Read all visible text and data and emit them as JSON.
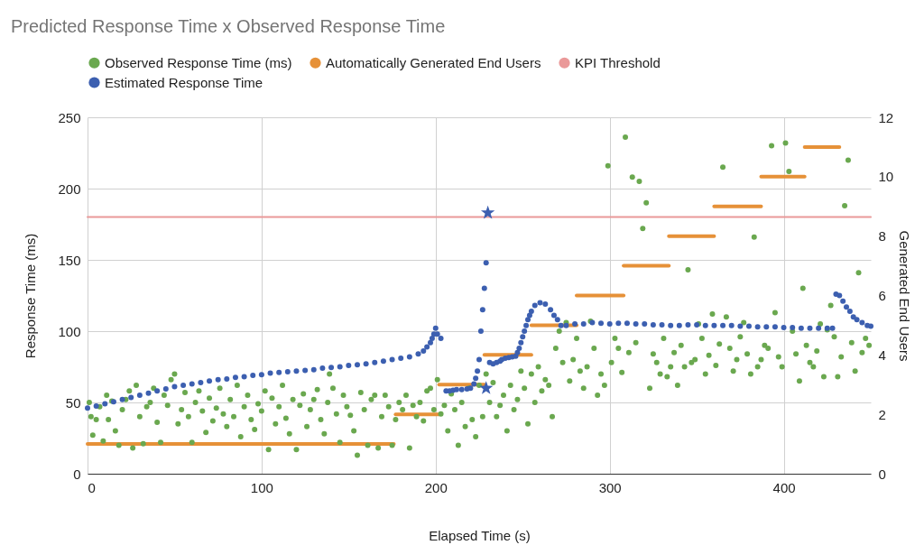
{
  "chart_data": {
    "type": "scatter",
    "title": "Predicted Response Time x Observed Response Time",
    "xlabel": "Elapsed Time (s)",
    "ylabel": "Response Time (ms)",
    "y2label": "Generated End Users",
    "xlim": [
      0,
      450
    ],
    "xticks": [
      0,
      100,
      200,
      300,
      400
    ],
    "ylim": [
      0,
      250
    ],
    "yticks": [
      0,
      50,
      100,
      150,
      200,
      250
    ],
    "y2lim": [
      0,
      12
    ],
    "y2ticks": [
      0,
      2,
      4,
      6,
      8,
      10,
      12
    ],
    "grid": true,
    "legend": "top",
    "series": [
      {
        "name": "Observed Response Time (ms)",
        "marker": "circle",
        "color": "#6aa84f",
        "x": [
          1,
          2,
          3,
          5,
          7,
          9,
          11,
          12,
          14,
          16,
          18,
          20,
          22,
          24,
          26,
          28,
          30,
          32,
          34,
          36,
          38,
          40,
          42,
          44,
          46,
          48,
          50,
          52,
          54,
          56,
          58,
          60,
          62,
          64,
          66,
          68,
          70,
          72,
          74,
          76,
          78,
          80,
          82,
          84,
          86,
          88,
          90,
          92,
          94,
          96,
          98,
          100,
          102,
          104,
          106,
          108,
          110,
          112,
          114,
          116,
          118,
          120,
          122,
          124,
          126,
          128,
          130,
          132,
          134,
          136,
          138,
          139,
          141,
          143,
          145,
          147,
          149,
          151,
          153,
          155,
          157,
          159,
          161,
          163,
          165,
          167,
          169,
          171,
          173,
          175,
          177,
          179,
          181,
          183,
          185,
          187,
          189,
          191,
          193,
          195,
          197,
          199,
          201,
          203,
          205,
          207,
          209,
          211,
          213,
          215,
          217,
          219,
          221,
          223,
          225,
          227,
          229,
          231,
          233,
          235,
          237,
          239,
          241,
          243,
          245,
          247,
          249,
          251,
          253,
          255,
          257,
          259,
          261,
          263,
          265,
          267,
          269,
          271,
          273,
          275,
          277,
          279,
          281,
          283,
          285,
          287,
          289,
          291,
          293,
          295,
          297,
          299,
          301,
          303,
          305,
          307,
          309,
          311,
          313,
          315,
          317,
          319,
          321,
          323,
          325,
          327,
          329,
          331,
          333,
          335,
          337,
          339,
          341,
          343,
          345,
          347,
          349,
          351,
          353,
          355,
          357,
          359,
          361,
          363,
          365,
          367,
          369,
          371,
          373,
          375,
          377,
          379,
          381,
          383,
          385,
          387,
          389,
          391,
          393,
          395,
          397,
          399,
          401,
          403,
          405,
          407,
          409,
          411,
          413,
          415,
          417,
          419,
          421,
          423,
          425,
          427,
          429,
          431,
          433,
          435,
          437,
          439,
          441,
          443,
          445,
          447,
          449
        ],
        "values": [
          50,
          40,
          27,
          38,
          47,
          23,
          55,
          38,
          51,
          30,
          20,
          45,
          52,
          58,
          18,
          62,
          40,
          21,
          47,
          50,
          60,
          36,
          22,
          55,
          48,
          66,
          70,
          35,
          45,
          57,
          40,
          22,
          50,
          58,
          44,
          29,
          53,
          37,
          46,
          60,
          42,
          33,
          52,
          40,
          62,
          26,
          47,
          55,
          38,
          31,
          49,
          44,
          58,
          17,
          53,
          35,
          47,
          62,
          39,
          28,
          52,
          17,
          48,
          56,
          33,
          45,
          52,
          59,
          38,
          28,
          50,
          70,
          60,
          42,
          22,
          55,
          47,
          41,
          30,
          13,
          57,
          45,
          20,
          52,
          55,
          18,
          40,
          55,
          47,
          20,
          38,
          50,
          45,
          55,
          18,
          48,
          40,
          50,
          37,
          58,
          60,
          45,
          66,
          42,
          48,
          30,
          56,
          45,
          20,
          50,
          33,
          60,
          38,
          26,
          62,
          40,
          70,
          50,
          64,
          40,
          48,
          55,
          30,
          62,
          45,
          52,
          72,
          60,
          35,
          70,
          50,
          75,
          58,
          66,
          62,
          40,
          88,
          100,
          78,
          106,
          65,
          80,
          95,
          72,
          60,
          75,
          107,
          88,
          55,
          70,
          62,
          216,
          78,
          95,
          88,
          71,
          236,
          85,
          208,
          92,
          205,
          172,
          190,
          60,
          84,
          78,
          70,
          95,
          68,
          75,
          85,
          62,
          90,
          75,
          143,
          78,
          80,
          105,
          95,
          70,
          83,
          112,
          76,
          91,
          215,
          110,
          88,
          72,
          80,
          96,
          106,
          84,
          70,
          166,
          75,
          80,
          90,
          88,
          230,
          113,
          82,
          75,
          232,
          212,
          100,
          84,
          65,
          130,
          90,
          78,
          75,
          86,
          105,
          68,
          101,
          118,
          96,
          68,
          82,
          188,
          220,
          92,
          72,
          141,
          85,
          95,
          90
        ]
      },
      {
        "name": "Automatically Generated End Users",
        "type": "line",
        "axis": "y2",
        "line_style": "solid",
        "color": "#e69138",
        "x": [
          0,
          176,
          null,
          177,
          202,
          null,
          202,
          228,
          null,
          228,
          255,
          null,
          255,
          281,
          null,
          281,
          308,
          null,
          308,
          334,
          null,
          334,
          360,
          null,
          360,
          387,
          null,
          387,
          412,
          null,
          412,
          432
        ],
        "values": [
          1,
          1,
          null,
          2,
          2,
          null,
          3,
          3,
          null,
          4,
          4,
          null,
          5,
          5,
          null,
          6,
          6,
          null,
          7,
          7,
          null,
          8,
          8,
          null,
          9,
          9,
          null,
          10,
          10,
          null,
          11,
          11
        ]
      },
      {
        "name": "KPI Threshold",
        "type": "line",
        "line_style": "solid",
        "color": "#ea9999",
        "x": [
          0,
          450
        ],
        "values": [
          180,
          180
        ]
      },
      {
        "name": "Estimated Response Time",
        "marker": "circle",
        "color": "#3c5fb0",
        "x": [
          0,
          5,
          10,
          15,
          20,
          25,
          30,
          35,
          40,
          45,
          50,
          55,
          60,
          65,
          70,
          75,
          80,
          85,
          90,
          95,
          100,
          105,
          110,
          115,
          120,
          125,
          130,
          135,
          140,
          145,
          150,
          155,
          160,
          165,
          170,
          175,
          180,
          185,
          190,
          193,
          195,
          197,
          198,
          199,
          200,
          201,
          203,
          206,
          208,
          210,
          212,
          215,
          218,
          220,
          222,
          223,
          224,
          225,
          226,
          227,
          228,
          229,
          231,
          233,
          235,
          237,
          238,
          240,
          242,
          244,
          246,
          247,
          248,
          249,
          250,
          251,
          252,
          253,
          254,
          255,
          257,
          260,
          263,
          266,
          268,
          270,
          272,
          275,
          280,
          285,
          290,
          295,
          300,
          305,
          310,
          315,
          320,
          325,
          330,
          335,
          340,
          345,
          350,
          355,
          360,
          365,
          370,
          375,
          380,
          385,
          390,
          395,
          400,
          405,
          410,
          415,
          420,
          425,
          428,
          430,
          432,
          434,
          436,
          438,
          440,
          442,
          445,
          448,
          450
        ],
        "values": [
          46,
          47.5,
          49,
          50.5,
          52,
          53.5,
          55,
          56.5,
          58,
          59.5,
          61,
          62,
          63,
          64,
          65,
          66,
          66.5,
          67.5,
          68,
          69,
          69.5,
          70.5,
          71,
          71.5,
          72,
          72.5,
          73,
          74,
          74.5,
          75,
          76,
          76.5,
          77,
          78,
          79,
          80,
          81,
          82,
          84,
          86,
          89,
          92,
          95,
          98,
          102,
          98,
          95,
          58,
          58,
          58.5,
          59,
          59,
          59.5,
          60,
          63,
          67,
          72,
          80,
          100,
          115,
          130,
          148,
          78,
          77,
          78,
          79,
          80,
          81,
          81.5,
          82,
          82.5,
          85,
          88,
          92,
          96,
          100,
          104,
          108,
          111,
          114,
          118,
          120,
          119,
          115,
          111,
          108,
          104,
          104,
          105,
          105,
          106,
          105.5,
          105,
          105.5,
          105.5,
          105,
          105,
          104.5,
          104.5,
          104,
          104,
          104.5,
          104.5,
          104,
          104,
          104,
          104,
          103.5,
          103.5,
          103,
          103,
          103,
          102.5,
          102.5,
          102,
          102,
          102,
          102,
          102,
          126,
          125,
          121,
          117,
          114,
          110,
          108,
          106,
          104,
          103.5
        ]
      },
      {
        "marker": "star",
        "color": "#3c5fb0",
        "x": [
          230,
          229
        ],
        "values": [
          183,
          60
        ]
      }
    ]
  }
}
